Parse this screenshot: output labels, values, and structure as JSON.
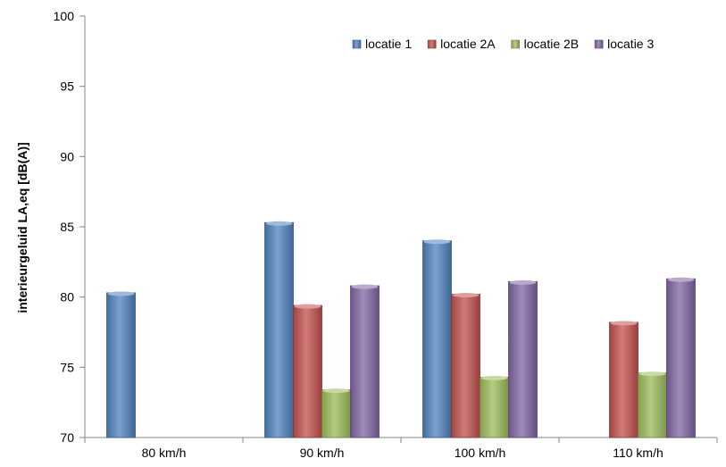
{
  "chart_data": {
    "type": "bar",
    "title": "",
    "xlabel": "",
    "ylabel": "interieurgeluid LA,eq [dB(A)]",
    "ylim": [
      70,
      100
    ],
    "yticks": [
      70,
      75,
      80,
      85,
      90,
      95,
      100
    ],
    "categories": [
      "80 km/h",
      "90 km/h",
      "100 km/h",
      "110 km/h"
    ],
    "series": [
      {
        "name": "locatie 1",
        "color": "#4f81bd",
        "values": [
          80.3,
          85.3,
          84.0,
          null
        ]
      },
      {
        "name": "locatie 2A",
        "color": "#c0504d",
        "values": [
          null,
          79.4,
          80.2,
          78.2
        ]
      },
      {
        "name": "locatie 2B",
        "color": "#9bbb59",
        "values": [
          null,
          73.4,
          74.3,
          74.6
        ]
      },
      {
        "name": "locatie 3",
        "color": "#8064a2",
        "values": [
          null,
          80.8,
          81.1,
          81.3
        ]
      }
    ],
    "grid": false,
    "legend": "top-right"
  }
}
